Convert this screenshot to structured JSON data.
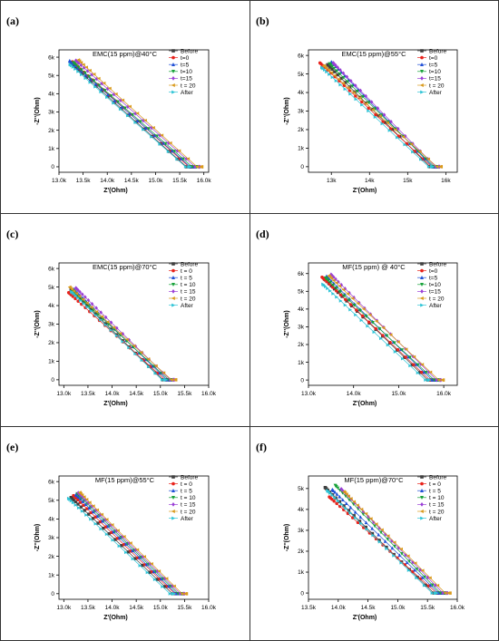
{
  "legend_labels_abc": [
    "Before",
    "t=0",
    "t=5",
    "t=10",
    "t=15",
    "t = 20",
    "After"
  ],
  "series_colors": [
    "#404040",
    "#e8231c",
    "#1f4fd6",
    "#18a23a",
    "#9b3fd6",
    "#d99a1c",
    "#2ec4d6"
  ],
  "series_markers": [
    "square",
    "circle",
    "triangle-up",
    "triangle-down",
    "diamond",
    "triangle-left",
    "triangle-right"
  ],
  "chart_data": [
    {
      "type": "scatter",
      "label": "(a)",
      "title": "EMC(15 ppm)@40°C",
      "xlabel": "Z'(Ohm)",
      "ylabel": "-Z''(Ohm)",
      "xlim": [
        13000,
        16100
      ],
      "ylim": [
        -300,
        6400
      ],
      "xticks": [
        13000,
        13500,
        14000,
        14500,
        15000,
        15500,
        16000
      ],
      "xticklabels": [
        "13.0k",
        "13.5k",
        "14.0k",
        "14.5k",
        "15.0k",
        "15.5k",
        "16.0k"
      ],
      "yticks": [
        0,
        1000,
        2000,
        3000,
        4000,
        5000,
        6000
      ],
      "yticklabels": [
        "0",
        "1k",
        "2k",
        "3k",
        "4k",
        "5k",
        "6k"
      ],
      "legend": [
        "Before",
        "t=0",
        "t=5",
        "t=10",
        "t=15",
        "t = 20",
        "After"
      ],
      "series": [
        {
          "name": "Before",
          "start": [
            13250,
            5650
          ],
          "end": [
            15700,
            0
          ]
        },
        {
          "name": "t=0",
          "start": [
            13280,
            5750
          ],
          "end": [
            15750,
            0
          ]
        },
        {
          "name": "t=5",
          "start": [
            13220,
            5800
          ],
          "end": [
            15780,
            0
          ]
        },
        {
          "name": "t=10",
          "start": [
            13300,
            5700
          ],
          "end": [
            15820,
            0
          ]
        },
        {
          "name": "t=15",
          "start": [
            13350,
            5820
          ],
          "end": [
            15880,
            0
          ]
        },
        {
          "name": "t = 20",
          "start": [
            13400,
            5850
          ],
          "end": [
            15920,
            0
          ]
        },
        {
          "name": "After",
          "start": [
            13230,
            5600
          ],
          "end": [
            15680,
            0
          ]
        }
      ]
    },
    {
      "type": "scatter",
      "label": "(b)",
      "title": "EMC(15 ppm)@55°C",
      "xlabel": "Z'(Ohm)",
      "ylabel": "-Z''(Ohm)",
      "xlim": [
        12400,
        16300
      ],
      "ylim": [
        -300,
        6300
      ],
      "xticks": [
        13000,
        14000,
        15000,
        16000
      ],
      "xticklabels": [
        "13k",
        "14k",
        "15k",
        "16k"
      ],
      "yticks": [
        0,
        1000,
        2000,
        3000,
        4000,
        5000,
        6000
      ],
      "yticklabels": [
        "0",
        "1k",
        "2k",
        "3k",
        "4k",
        "5k",
        "6k"
      ],
      "legend": [
        "Before",
        "t=0",
        "t=5",
        "t=10",
        "t=15",
        "t = 20",
        "After"
      ],
      "series": [
        {
          "name": "Before",
          "start": [
            12900,
            5500
          ],
          "end": [
            15650,
            0
          ]
        },
        {
          "name": "t=0",
          "start": [
            12700,
            5600
          ],
          "end": [
            15700,
            0
          ]
        },
        {
          "name": "t=5",
          "start": [
            13000,
            5650
          ],
          "end": [
            15720,
            0
          ]
        },
        {
          "name": "t=10",
          "start": [
            12950,
            5550
          ],
          "end": [
            15760,
            0
          ]
        },
        {
          "name": "t=15",
          "start": [
            13050,
            5600
          ],
          "end": [
            15800,
            0
          ]
        },
        {
          "name": "t = 20",
          "start": [
            12800,
            5450
          ],
          "end": [
            15840,
            0
          ]
        },
        {
          "name": "After",
          "start": [
            12750,
            5350
          ],
          "end": [
            15620,
            0
          ]
        }
      ]
    },
    {
      "type": "scatter",
      "label": "(c)",
      "title": "EMC(15 ppm)@70°C",
      "xlabel": "Z'(Ohm)",
      "ylabel": "-Z''(Ohm)",
      "xlim": [
        12900,
        16000
      ],
      "ylim": [
        -300,
        6300
      ],
      "xticks": [
        13000,
        13500,
        14000,
        14500,
        15000,
        15500,
        16000
      ],
      "xticklabels": [
        "13.0k",
        "13.5k",
        "14.0k",
        "14.5k",
        "15.0k",
        "15.5k",
        "16.0k"
      ],
      "yticks": [
        0,
        1000,
        2000,
        3000,
        4000,
        5000,
        6000
      ],
      "yticklabels": [
        "0",
        "1k",
        "2k",
        "3k",
        "4k",
        "5k",
        "6k"
      ],
      "legend": [
        "Before",
        "t = 0",
        "t = 5",
        "t = 10",
        "t = 15",
        "t = 20",
        "After"
      ],
      "series": [
        {
          "name": "Before",
          "start": [
            13150,
            4850
          ],
          "end": [
            15100,
            0
          ]
        },
        {
          "name": "t = 0",
          "start": [
            13100,
            4700
          ],
          "end": [
            15150,
            0
          ]
        },
        {
          "name": "t = 5",
          "start": [
            13200,
            4900
          ],
          "end": [
            15180,
            0
          ]
        },
        {
          "name": "t = 10",
          "start": [
            13180,
            4800
          ],
          "end": [
            15220,
            0
          ]
        },
        {
          "name": "t = 15",
          "start": [
            13250,
            4950
          ],
          "end": [
            15250,
            0
          ]
        },
        {
          "name": "t = 20",
          "start": [
            13120,
            5000
          ],
          "end": [
            15280,
            0
          ]
        },
        {
          "name": "After",
          "start": [
            13160,
            4750
          ],
          "end": [
            15080,
            0
          ]
        }
      ]
    },
    {
      "type": "scatter",
      "label": "(d)",
      "title": "MF(15 ppm) @ 40°C",
      "xlabel": "Z'(Ohm)",
      "ylabel": "-Z''(Ohm)",
      "xlim": [
        13000,
        16300
      ],
      "ylim": [
        -300,
        6600
      ],
      "xticks": [
        13000,
        14000,
        15000,
        16000
      ],
      "xticklabels": [
        "13.0k",
        "14.0k",
        "15.0k",
        "16.0k"
      ],
      "yticks": [
        0,
        1000,
        2000,
        3000,
        4000,
        5000,
        6000
      ],
      "yticklabels": [
        "0",
        "1k",
        "2k",
        "3k",
        "4k",
        "5k",
        "6k"
      ],
      "legend": [
        "Before",
        "t=0",
        "t=5",
        "t=10",
        "t=15",
        "t = 20",
        "After"
      ],
      "series": [
        {
          "name": "Before",
          "start": [
            13350,
            5700
          ],
          "end": [
            15700,
            0
          ]
        },
        {
          "name": "t=0",
          "start": [
            13300,
            5800
          ],
          "end": [
            15750,
            0
          ]
        },
        {
          "name": "t=5",
          "start": [
            13400,
            5850
          ],
          "end": [
            15800,
            0
          ]
        },
        {
          "name": "t=10",
          "start": [
            13380,
            5750
          ],
          "end": [
            15850,
            0
          ]
        },
        {
          "name": "t=15",
          "start": [
            13500,
            5950
          ],
          "end": [
            15900,
            0
          ]
        },
        {
          "name": "t = 20",
          "start": [
            13450,
            5880
          ],
          "end": [
            15950,
            0
          ]
        },
        {
          "name": "After",
          "start": [
            13320,
            5400
          ],
          "end": [
            15650,
            0
          ]
        }
      ]
    },
    {
      "type": "scatter",
      "label": "(e)",
      "title": "MF(15 ppm)@55°C",
      "xlabel": "Z'(Ohm)",
      "ylabel": "-Z''(Ohm)",
      "xlim": [
        12900,
        16000
      ],
      "ylim": [
        -300,
        6300
      ],
      "xticks": [
        13000,
        13500,
        14000,
        14500,
        15000,
        15500,
        16000
      ],
      "xticklabels": [
        "13.0k",
        "13.5k",
        "14.0k",
        "14.5k",
        "15.0k",
        "15.5k",
        "16.0k"
      ],
      "yticks": [
        0,
        1000,
        2000,
        3000,
        4000,
        5000,
        6000
      ],
      "yticklabels": [
        "0",
        "1k",
        "2k",
        "3k",
        "4k",
        "5k",
        "6k"
      ],
      "legend": [
        "Before",
        "t = 0",
        "t = 5",
        "t = 10",
        "t = 15",
        "t = 20",
        "After"
      ],
      "series": [
        {
          "name": "Before",
          "start": [
            13150,
            5150
          ],
          "end": [
            15300,
            0
          ]
        },
        {
          "name": "t = 0",
          "start": [
            13200,
            5250
          ],
          "end": [
            15350,
            0
          ]
        },
        {
          "name": "t = 5",
          "start": [
            13250,
            5300
          ],
          "end": [
            15380,
            0
          ]
        },
        {
          "name": "t = 10",
          "start": [
            13280,
            5350
          ],
          "end": [
            15420,
            0
          ]
        },
        {
          "name": "t = 15",
          "start": [
            13300,
            5400
          ],
          "end": [
            15460,
            0
          ]
        },
        {
          "name": "t = 20",
          "start": [
            13330,
            5420
          ],
          "end": [
            15500,
            0
          ]
        },
        {
          "name": "After",
          "start": [
            13100,
            5100
          ],
          "end": [
            15250,
            0
          ]
        }
      ]
    },
    {
      "type": "scatter",
      "label": "(f)",
      "title": "MF(15 ppm)@70°C",
      "xlabel": "Z'(Ohm)",
      "ylabel": "-Z''(Ohm)",
      "xlim": [
        13500,
        16000
      ],
      "ylim": [
        -300,
        5600
      ],
      "xticks": [
        13500,
        14000,
        14500,
        15000,
        15500,
        16000
      ],
      "xticklabels": [
        "13.5k",
        "14.0k",
        "14.5k",
        "15.0k",
        "15.5k",
        "16.0k"
      ],
      "yticks": [
        0,
        1000,
        2000,
        3000,
        4000,
        5000
      ],
      "yticklabels": [
        "0",
        "1k",
        "2k",
        "3k",
        "4k",
        "5k"
      ],
      "legend": [
        "Before",
        "t = 0",
        "t = 5",
        "t = 10",
        "t = 15",
        "t = 20",
        "After"
      ],
      "series": [
        {
          "name": "Before",
          "start": [
            13780,
            5050
          ],
          "end": [
            15650,
            0
          ]
        },
        {
          "name": "t = 0",
          "start": [
            13850,
            4600
          ],
          "end": [
            15700,
            0
          ]
        },
        {
          "name": "t = 5",
          "start": [
            13900,
            4950
          ],
          "end": [
            15730,
            0
          ]
        },
        {
          "name": "t = 10",
          "start": [
            13950,
            5150
          ],
          "end": [
            15760,
            0
          ]
        },
        {
          "name": "t = 15",
          "start": [
            14050,
            4980
          ],
          "end": [
            15800,
            0
          ]
        },
        {
          "name": "t = 20",
          "start": [
            14100,
            4850
          ],
          "end": [
            15840,
            0
          ]
        },
        {
          "name": "After",
          "start": [
            13820,
            4900
          ],
          "end": [
            15620,
            0
          ]
        }
      ]
    }
  ]
}
